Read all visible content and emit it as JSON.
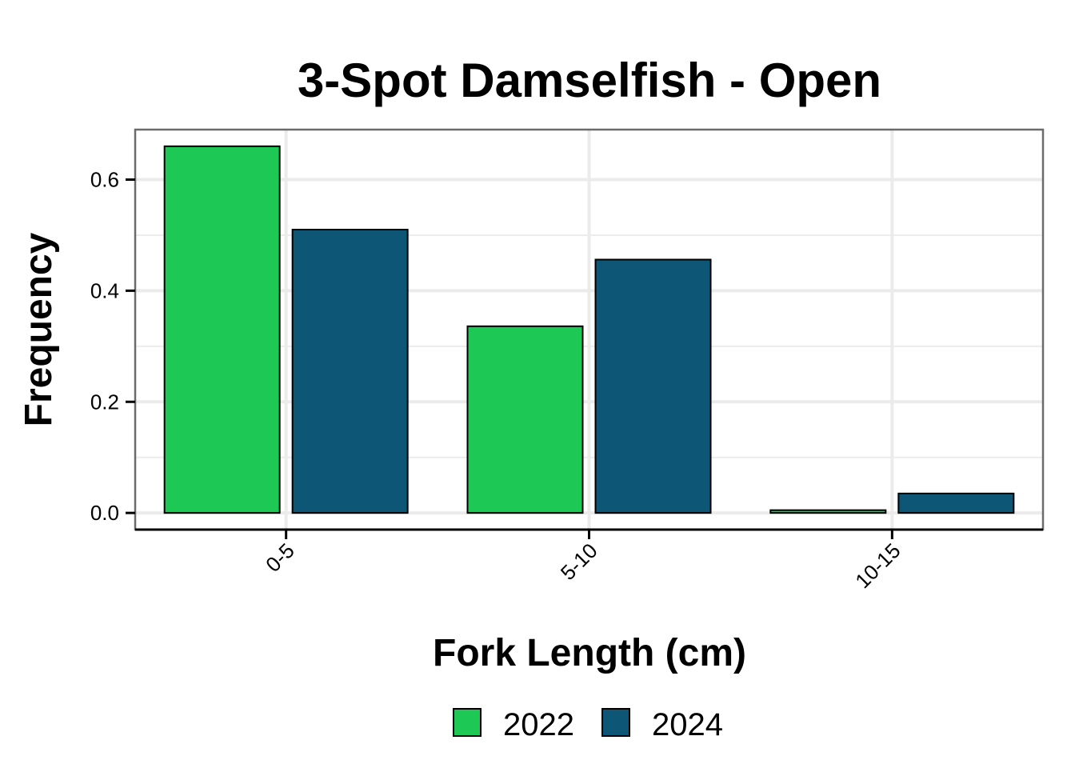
{
  "chart_data": {
    "type": "bar",
    "title": "3-Spot Damselfish - Open",
    "xlabel": "Fork Length (cm)",
    "ylabel": "Frequency",
    "categories": [
      "0-5",
      "5-10",
      "10-15"
    ],
    "series": [
      {
        "name": "2022",
        "color": "#1ec854",
        "values": [
          0.66,
          0.336,
          0.005
        ]
      },
      {
        "name": "2024",
        "color": "#0e5676",
        "values": [
          0.51,
          0.456,
          0.035
        ]
      }
    ],
    "ylim": [
      -0.03,
      0.69
    ],
    "yticks": [
      0.0,
      0.2,
      0.4,
      0.6
    ],
    "ytick_labels": [
      "0.0",
      "0.2",
      "0.4",
      "0.6"
    ],
    "grid": true,
    "legend_position": "bottom",
    "x_tick_rotation": -45
  }
}
